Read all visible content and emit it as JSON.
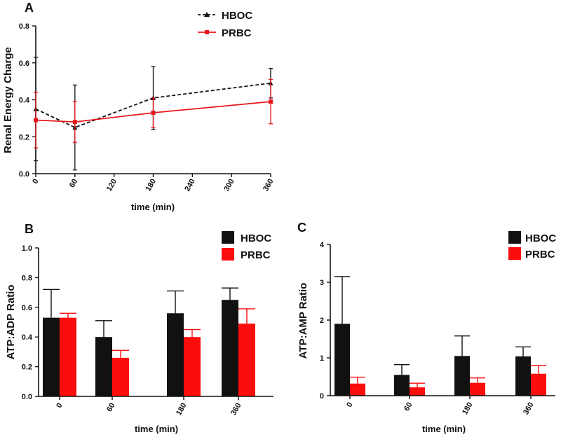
{
  "chart_data": [
    {
      "panel": "A",
      "type": "line",
      "title": "",
      "xlabel": "time (min)",
      "ylabel": "Renal Energy Charge",
      "xlim": [
        0,
        360
      ],
      "ylim": [
        0,
        0.8
      ],
      "x_ticks": [
        "0",
        "60",
        "120",
        "180",
        "240",
        "300",
        "360"
      ],
      "y_ticks": [
        "0.0",
        "0.2",
        "0.4",
        "0.6",
        "0.8"
      ],
      "series": [
        {
          "name": "HBOC",
          "color": "#111111",
          "style": "dashed",
          "marker": "triangle",
          "x": [
            0,
            60,
            180,
            360
          ],
          "values": [
            0.35,
            0.25,
            0.41,
            0.49
          ],
          "err": [
            0.28,
            0.23,
            0.17,
            0.08
          ]
        },
        {
          "name": "PRBC",
          "color": "#e8161b",
          "style": "solid",
          "marker": "square",
          "x": [
            0,
            60,
            180,
            360
          ],
          "values": [
            0.29,
            0.28,
            0.33,
            0.39
          ],
          "err": [
            0.15,
            0.11,
            0.08,
            0.12
          ]
        }
      ],
      "legend": "top-right"
    },
    {
      "panel": "B",
      "type": "bar",
      "title": "",
      "xlabel": "time (min)",
      "ylabel": "ATP:ADP Ratio",
      "categories": [
        "0",
        "60",
        "180",
        "360"
      ],
      "ylim": [
        0,
        1.0
      ],
      "y_ticks": [
        "0.0",
        "0.2",
        "0.4",
        "0.6",
        "0.8",
        "1.0"
      ],
      "series": [
        {
          "name": "HBOC",
          "color": "#111111",
          "values": [
            0.53,
            0.4,
            0.56,
            0.65
          ],
          "err": [
            0.19,
            0.11,
            0.15,
            0.08
          ]
        },
        {
          "name": "PRBC",
          "color": "#fc0d0d",
          "values": [
            0.53,
            0.26,
            0.4,
            0.49
          ],
          "err": [
            0.03,
            0.05,
            0.05,
            0.1
          ]
        }
      ],
      "legend": "top-right"
    },
    {
      "panel": "C",
      "type": "bar",
      "title": "",
      "xlabel": "time (min)",
      "ylabel": "ATP:AMP Ratio",
      "categories": [
        "0",
        "60",
        "180",
        "360"
      ],
      "ylim": [
        0,
        4
      ],
      "y_ticks": [
        "0",
        "1",
        "2",
        "3",
        "4"
      ],
      "series": [
        {
          "name": "HBOC",
          "color": "#111111",
          "values": [
            1.9,
            0.55,
            1.05,
            1.04
          ],
          "err": [
            1.25,
            0.27,
            0.53,
            0.25
          ]
        },
        {
          "name": "PRBC",
          "color": "#fc0d0d",
          "values": [
            0.32,
            0.22,
            0.34,
            0.58
          ],
          "err": [
            0.17,
            0.11,
            0.13,
            0.22
          ]
        }
      ],
      "legend": "top-right"
    }
  ]
}
